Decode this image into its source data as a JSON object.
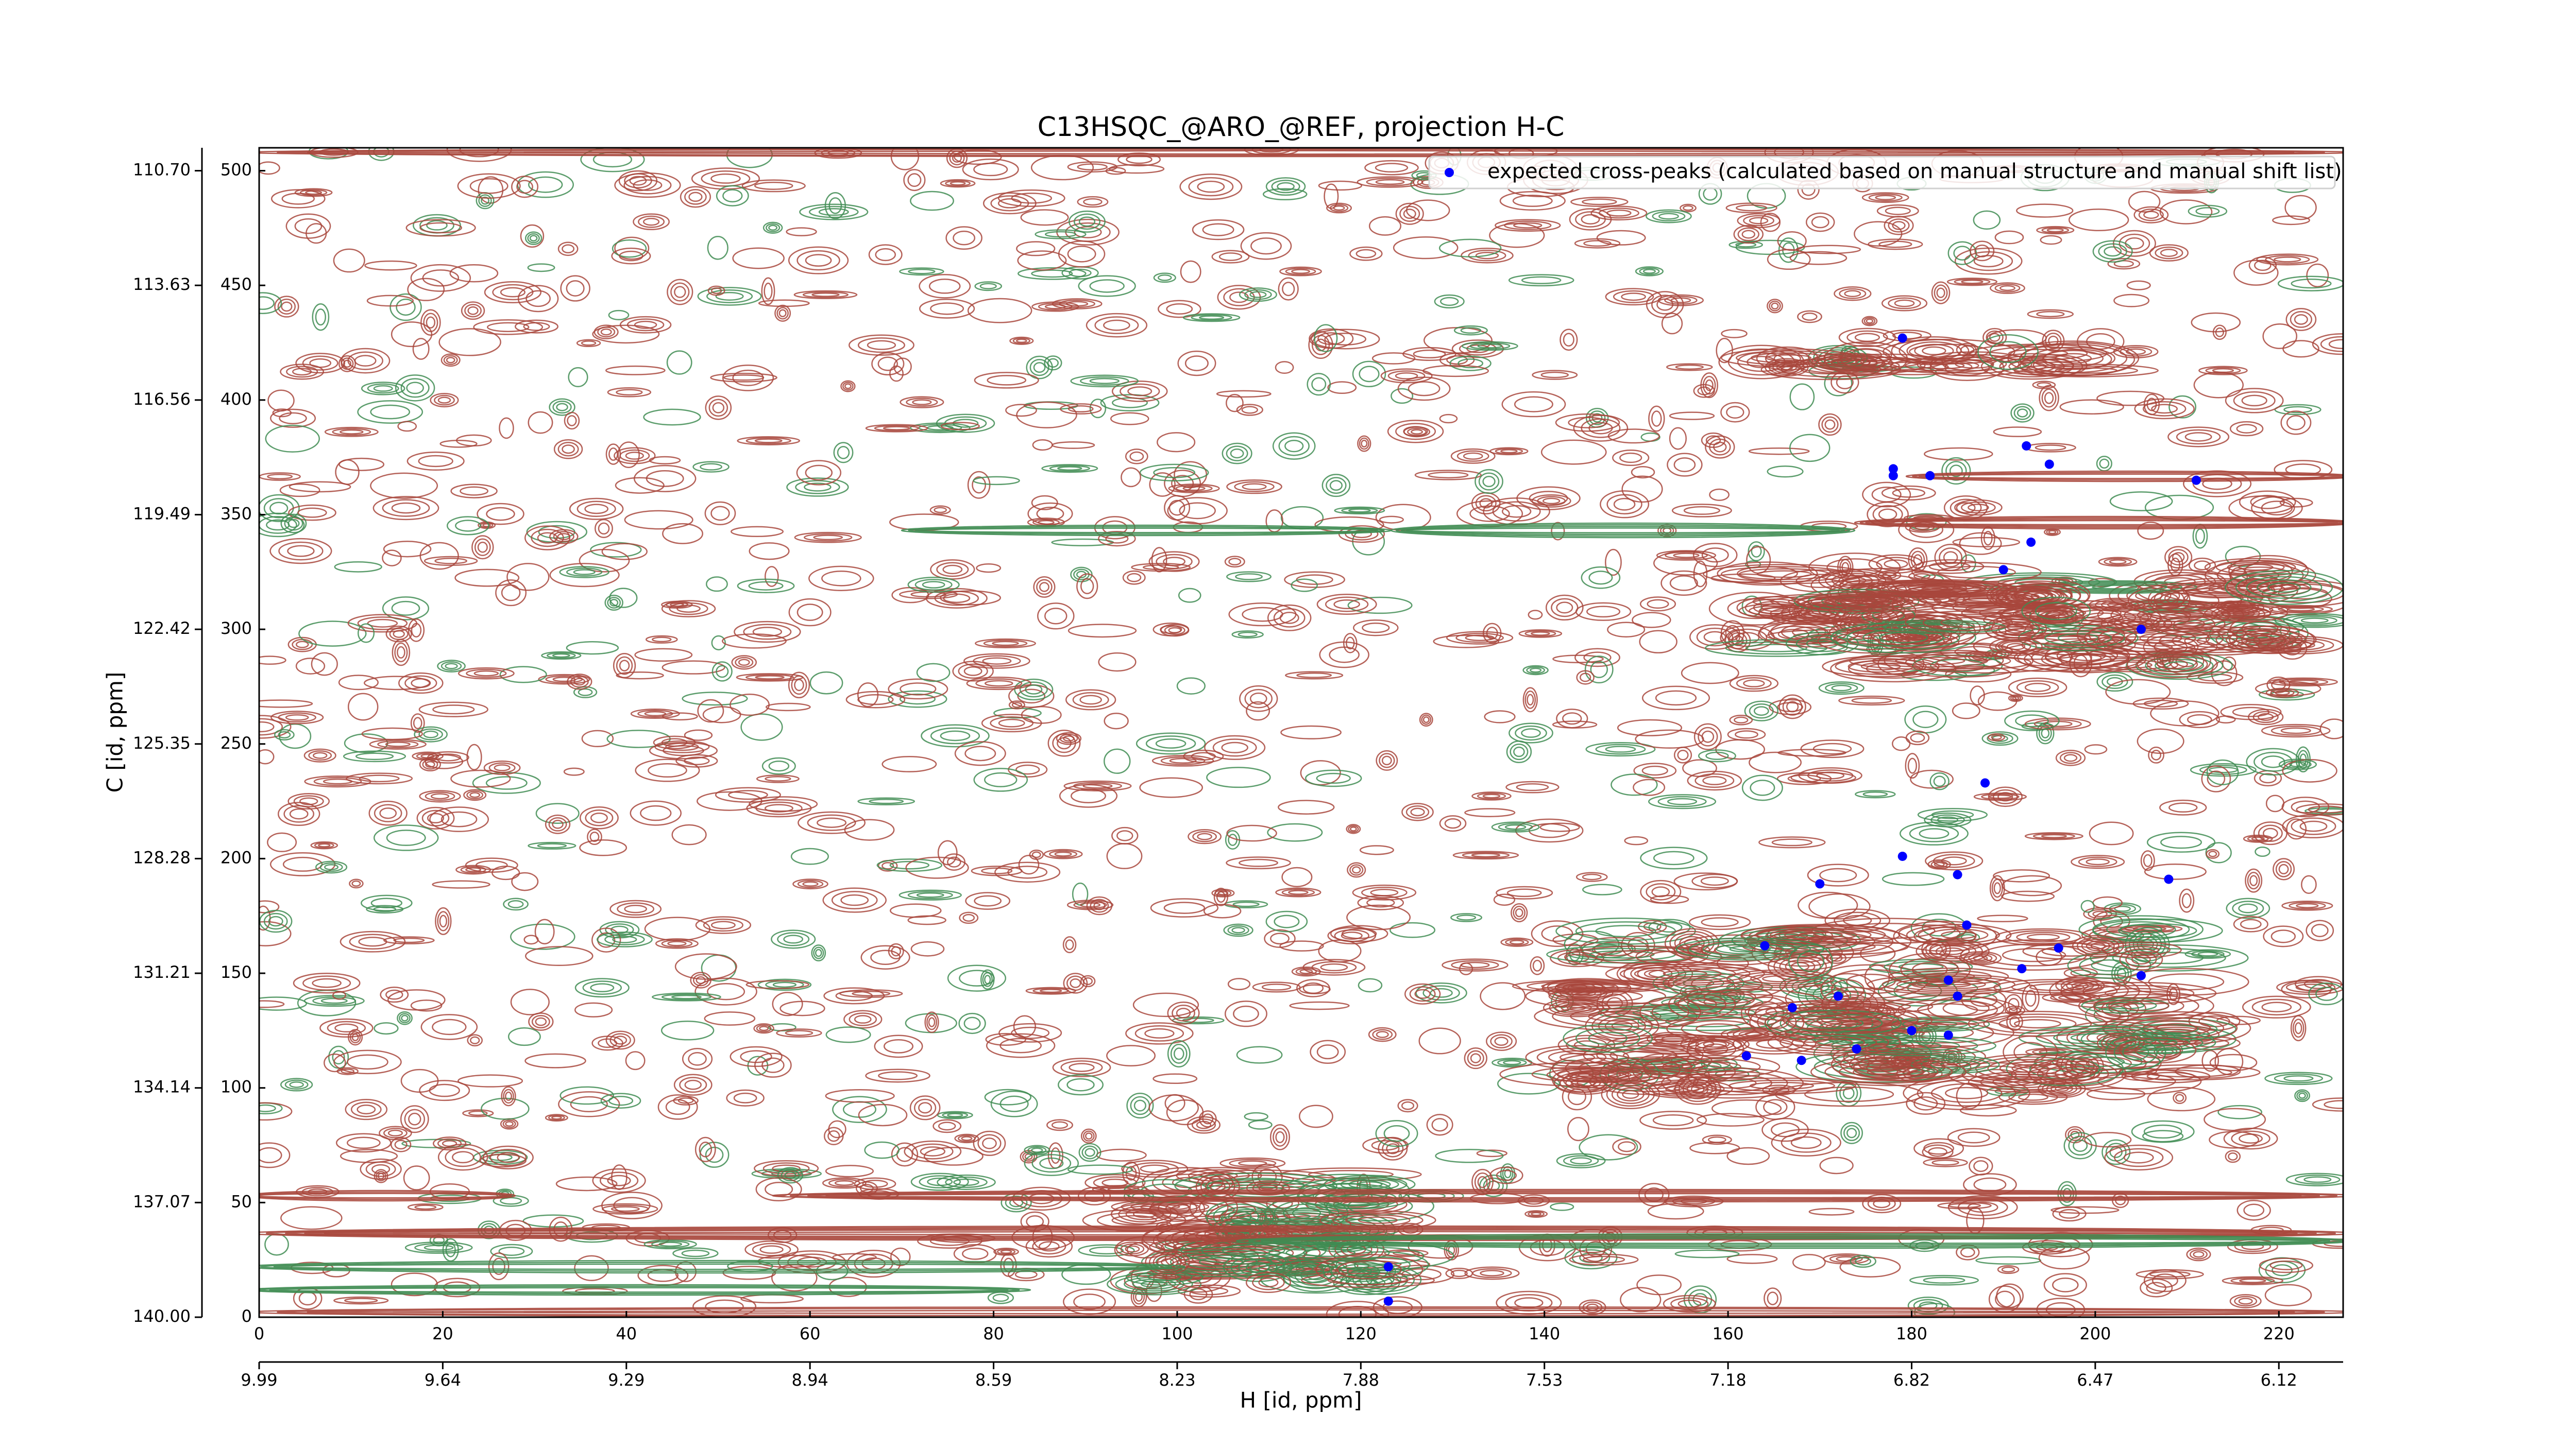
{
  "chart_data": {
    "type": "scatter",
    "title": "C13HSQC_@ARO_@REF, projection H-C",
    "x_label": "H [id, ppm]",
    "y_label": "C [id, ppm]",
    "xlim": [
      0,
      227
    ],
    "ylim": [
      0,
      510
    ],
    "xticks": [
      0,
      20,
      40,
      60,
      80,
      100,
      120,
      140,
      160,
      180,
      200,
      220
    ],
    "yticks": [
      0,
      50,
      100,
      150,
      200,
      250,
      300,
      350,
      400,
      450,
      500
    ],
    "x2ticks": [
      {
        "value": 0,
        "label": "9.99"
      },
      {
        "value": 20,
        "label": "9.64"
      },
      {
        "value": 40,
        "label": "9.29"
      },
      {
        "value": 60,
        "label": "8.94"
      },
      {
        "value": 80,
        "label": "8.59"
      },
      {
        "value": 100,
        "label": "8.23"
      },
      {
        "value": 120,
        "label": "7.88"
      },
      {
        "value": 140,
        "label": "7.53"
      },
      {
        "value": 160,
        "label": "7.18"
      },
      {
        "value": 180,
        "label": "6.82"
      },
      {
        "value": 200,
        "label": "6.47"
      },
      {
        "value": 220,
        "label": "6.12"
      }
    ],
    "y2ticks": [
      {
        "value": 0,
        "label": "140.00"
      },
      {
        "value": 50,
        "label": "137.07"
      },
      {
        "value": 100,
        "label": "134.14"
      },
      {
        "value": 150,
        "label": "131.21"
      },
      {
        "value": 200,
        "label": "128.28"
      },
      {
        "value": 250,
        "label": "125.35"
      },
      {
        "value": 300,
        "label": "122.42"
      },
      {
        "value": 350,
        "label": "119.49"
      },
      {
        "value": 400,
        "label": "116.56"
      },
      {
        "value": 450,
        "label": "113.63"
      },
      {
        "value": 500,
        "label": "110.70"
      }
    ],
    "series": [
      {
        "name": "expected cross-peaks (calculated based on manual structure and manual shift list)",
        "color": "#0000ff",
        "x": [
          179,
          178,
          178,
          182,
          192.5,
          195,
          211,
          193,
          190,
          205,
          188,
          179,
          185,
          170,
          208,
          186,
          164,
          196,
          192,
          205,
          184,
          172,
          185,
          167,
          180,
          184,
          174,
          162,
          168,
          123,
          123
        ],
        "values": [
          427,
          370,
          367,
          367,
          380,
          372,
          365,
          338,
          326,
          300,
          233,
          201,
          193,
          189,
          191,
          171,
          162,
          161,
          152,
          149,
          147,
          140,
          140,
          135,
          125,
          123,
          117,
          114,
          112,
          22,
          7
        ]
      }
    ],
    "legend": "upper right",
    "contour_colors": {
      "positive": "#a8473c",
      "negative": "#3f8c52"
    }
  }
}
